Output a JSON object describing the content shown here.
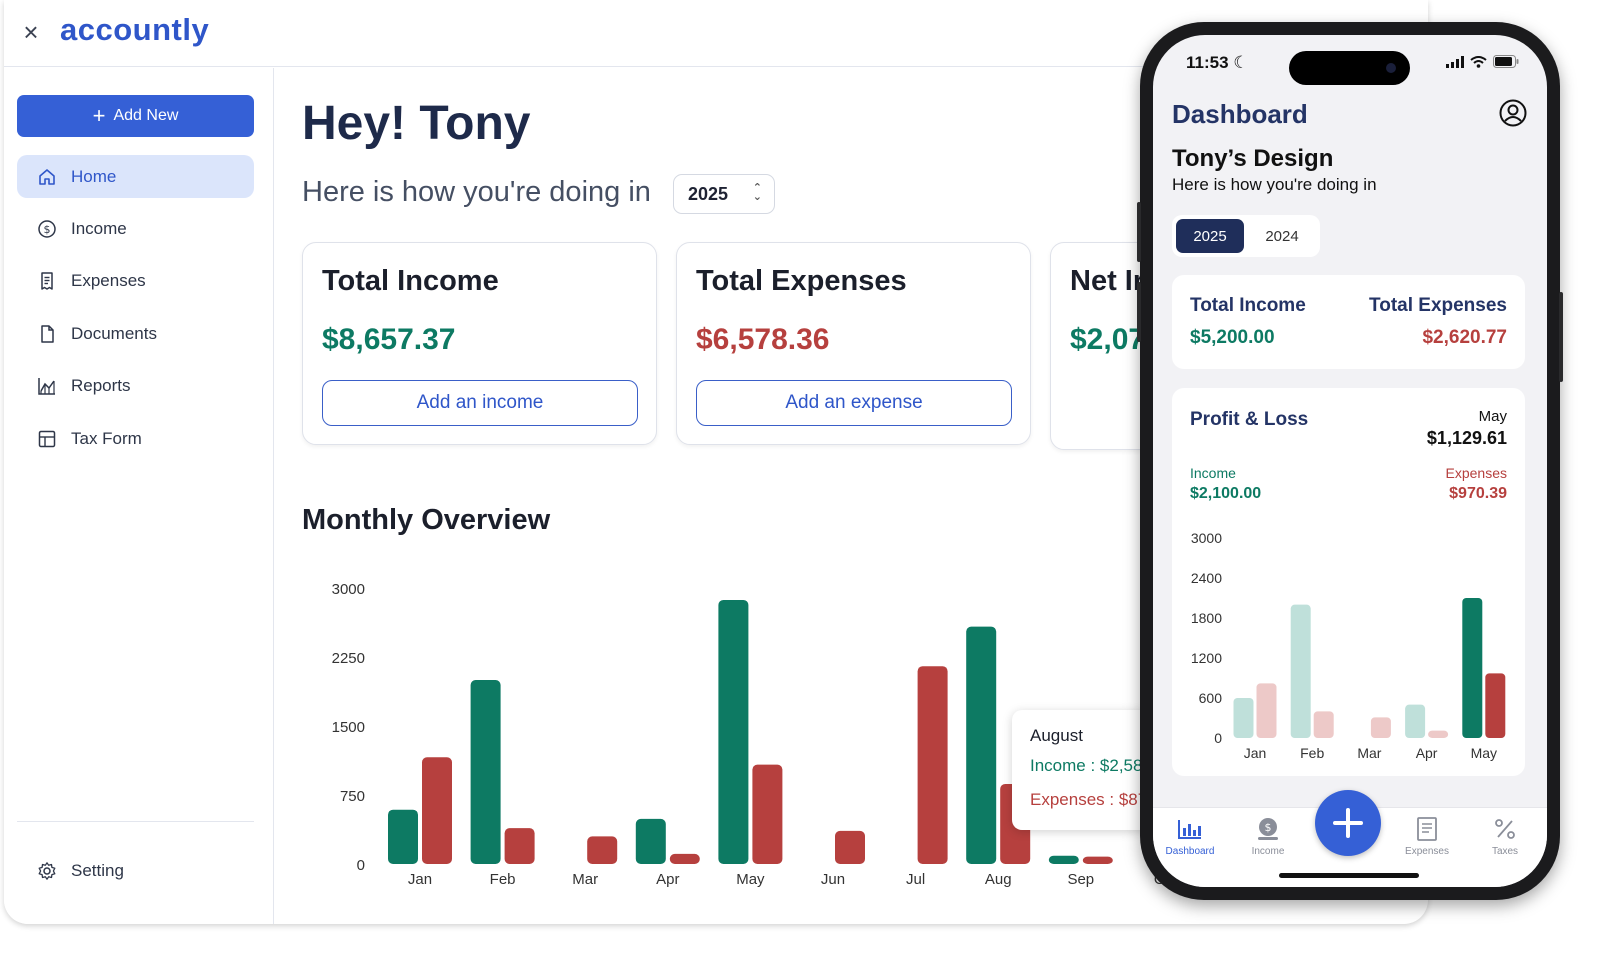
{
  "app": {
    "logo": "accountly"
  },
  "sidebar": {
    "add_new_label": "Add New",
    "items": [
      {
        "label": "Home",
        "icon": "home-icon",
        "active": true
      },
      {
        "label": "Income",
        "icon": "dollar-circle-icon",
        "active": false
      },
      {
        "label": "Expenses",
        "icon": "receipt-icon",
        "active": false
      },
      {
        "label": "Documents",
        "icon": "document-icon",
        "active": false
      },
      {
        "label": "Reports",
        "icon": "chart-icon",
        "active": false
      },
      {
        "label": "Tax Form",
        "icon": "grid-icon",
        "active": false
      }
    ],
    "setting_label": "Setting"
  },
  "main": {
    "greeting": "Hey! Tony",
    "subline": "Here is how you're doing in",
    "year": "2025",
    "cards": [
      {
        "title": "Total Income",
        "amount": "$8,657.37",
        "button": "Add an income"
      },
      {
        "title": "Total Expenses",
        "amount": "$6,578.36",
        "button": "Add an expense"
      },
      {
        "title": "Net Ir",
        "amount": "$2,07"
      }
    ],
    "overview_title": "Monthly Overview",
    "tooltip": {
      "month": "August",
      "income": "Income : $2,58",
      "expenses": "Expenses : $87"
    }
  },
  "chart_data": [
    {
      "type": "bar",
      "categories": [
        "Jan",
        "Feb",
        "Mar",
        "Apr",
        "May",
        "Jun",
        "Jul",
        "Aug",
        "Sep",
        "Oc"
      ],
      "series": [
        {
          "values": [
            590,
            2000,
            0,
            490,
            2870,
            0,
            0,
            2580,
            90,
            0
          ]
        },
        {
          "values": [
            1160,
            390,
            300,
            110,
            1080,
            360,
            2150,
            870,
            80,
            0
          ]
        }
      ],
      "yticks": [
        0,
        750,
        1500,
        2250,
        3000
      ],
      "ylim": [
        0,
        3000
      ],
      "colors": {
        "income": "#0d7a63",
        "expenses": "#b6403e"
      }
    },
    {
      "type": "bar",
      "categories": [
        "Jan",
        "Feb",
        "Mar",
        "Apr",
        "May"
      ],
      "series": [
        {
          "name": "Income",
          "values": [
            600,
            2000,
            0,
            500,
            2100
          ]
        },
        {
          "name": "Expenses",
          "values": [
            820,
            400,
            310,
            110,
            970
          ]
        }
      ],
      "yticks": [
        0,
        600,
        1200,
        1800,
        2400,
        3000
      ],
      "ylim": [
        0,
        3000
      ],
      "highlight": "May",
      "colors": {
        "income": "#0d7a63",
        "income_faded": "#bfe0da",
        "expenses": "#b6403e",
        "expenses_faded": "#edc9c8"
      }
    }
  ],
  "phone": {
    "time": "11:53",
    "title": "Dashboard",
    "design": "Tony’s Design",
    "subline": "Here is how you're doing in",
    "years": [
      "2025",
      "2024"
    ],
    "total_income_label": "Total Income",
    "total_income": "$5,200.00",
    "total_expenses_label": "Total Expenses",
    "total_expenses": "$2,620.77",
    "pl_title": "Profit & Loss",
    "pl_month": "May",
    "pl_value": "$1,129.61",
    "pl_income_label": "Income",
    "pl_income": "$2,100.00",
    "pl_expenses_label": "Expenses",
    "pl_expenses": "$970.39",
    "tabs": [
      {
        "label": "Dashboard",
        "icon": "bar-chart-icon",
        "active": true
      },
      {
        "label": "Income",
        "icon": "money-bag-icon",
        "active": false
      },
      {
        "label": "Expenses",
        "icon": "receipt-icon",
        "active": false
      },
      {
        "label": "Taxes",
        "icon": "percent-icon",
        "active": false
      }
    ]
  }
}
